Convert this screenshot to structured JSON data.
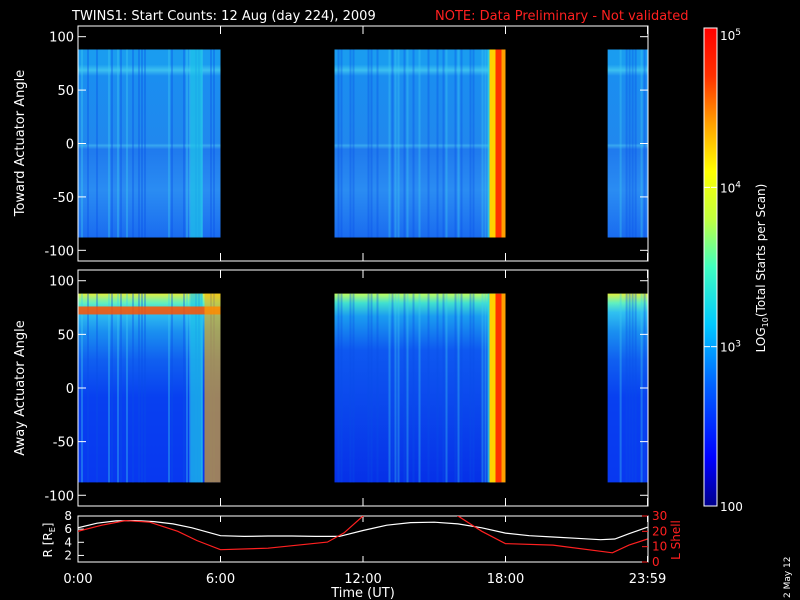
{
  "title": {
    "main": "TWINS1: Start Counts: 12 Aug (day 224), 2009",
    "note": "NOTE: Data Preliminary - Not validated",
    "note_color": "#ff2020"
  },
  "date_stamp": "2 May 12",
  "colorbar": {
    "label_prefix": "LOG",
    "label_sub": "10",
    "label_suffix": "(Total Starts per Scan)",
    "ticks": [
      {
        "base": "10",
        "exp": "5",
        "value": 100000
      },
      {
        "base": "10",
        "exp": "4",
        "value": 10000
      },
      {
        "base": "10",
        "exp": "3",
        "value": 1000
      },
      {
        "base": "100",
        "exp": "",
        "value": 100
      }
    ],
    "colors": [
      "#00008c",
      "#0000ff",
      "#0060ff",
      "#00c8ff",
      "#40ffc0",
      "#c0ff40",
      "#ffff00",
      "#ffa000",
      "#ff3000",
      "#ff0000"
    ]
  },
  "chart_data": [
    {
      "type": "heatmap",
      "name": "top",
      "ylabel": "Toward Actuator Angle",
      "ylim": [
        -110,
        110
      ],
      "yticks": [
        "100",
        "50",
        "0",
        "-50",
        "-100"
      ],
      "ytick_values": [
        100,
        50,
        0,
        -50,
        -100
      ],
      "xlim": [
        0,
        24
      ],
      "data_segments_hours": [
        [
          0,
          6.0
        ],
        [
          10.8,
          18.0
        ],
        [
          22.3,
          24
        ]
      ],
      "angle_range": [
        -88,
        88
      ],
      "dominant_level_log10": 2.9
    },
    {
      "type": "heatmap",
      "name": "bottom",
      "ylabel": "Away Actuator Angle",
      "ylim": [
        -110,
        110
      ],
      "yticks": [
        "100",
        "50",
        "0",
        "-50",
        "-100"
      ],
      "ytick_values": [
        100,
        50,
        0,
        -50,
        -100
      ],
      "xlim": [
        0,
        24
      ],
      "data_segments_hours": [
        [
          0,
          6.0
        ],
        [
          10.8,
          18.0
        ],
        [
          22.3,
          24
        ]
      ],
      "angle_range": [
        -88,
        88
      ],
      "dominant_level_log10": 2.5
    },
    {
      "type": "line",
      "name": "orbit",
      "xlabel": "Time (UT)",
      "xticks": [
        "0:00",
        "6:00",
        "12:00",
        "18:00",
        "23:59"
      ],
      "xtick_values": [
        0,
        6,
        12,
        18,
        23.98
      ],
      "ylabel_left": "R [R",
      "ylabel_left_sub": "E",
      "ylabel_left_close": "]",
      "ylabel_right": "L Shell",
      "yticks_left": [
        "8",
        "6",
        "4",
        "2"
      ],
      "ytick_values_left": [
        8,
        6,
        4,
        2
      ],
      "ylim_left": [
        1,
        8
      ],
      "yticks_right": [
        "30",
        "20",
        "10",
        "0"
      ],
      "ytick_values_right": [
        30,
        20,
        10,
        0
      ],
      "ylim_right": [
        0,
        30
      ],
      "series": [
        {
          "axis": "left",
          "color": "#ffffff",
          "x": [
            0,
            0.8,
            1.6,
            2.4,
            3.2,
            4.0,
            4.8,
            5.6,
            6.0,
            7.0,
            8.0,
            9.0,
            10.0,
            11.0,
            12.0,
            13.0,
            14.0,
            15.0,
            16.0,
            17.0,
            18.0,
            19.0,
            20.0,
            21.0,
            22.0,
            22.6,
            23.2,
            23.98
          ],
          "y": [
            6.2,
            6.9,
            7.25,
            7.3,
            7.15,
            6.8,
            6.2,
            5.4,
            5.0,
            4.9,
            4.95,
            4.95,
            4.9,
            4.9,
            5.8,
            6.6,
            7.0,
            7.05,
            6.8,
            6.2,
            5.4,
            5.0,
            4.8,
            4.6,
            4.4,
            4.5,
            5.3,
            6.3
          ]
        },
        {
          "axis": "right",
          "color": "#ff2020",
          "x": [
            0,
            1.0,
            2.0,
            3.0,
            4.2,
            5.0,
            6.0,
            8.0,
            10.5,
            11.2,
            12.0,
            12.1,
            15.9,
            16.0,
            17.0,
            18.0,
            20.0,
            22.5,
            23.2,
            23.98
          ],
          "y": [
            20,
            24,
            27,
            26,
            20,
            14,
            8,
            9,
            13,
            19,
            30,
            31,
            31,
            30,
            20,
            12,
            11,
            6,
            11,
            15
          ]
        }
      ]
    }
  ]
}
